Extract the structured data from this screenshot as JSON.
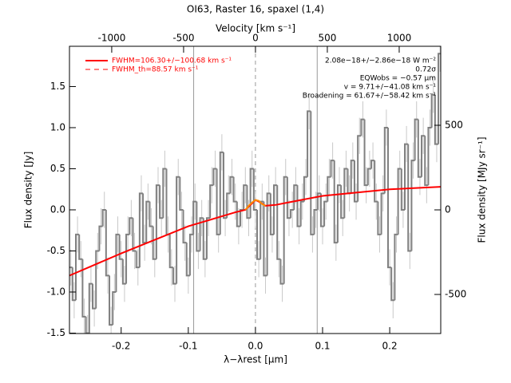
{
  "chart_data": {
    "type": "step",
    "title": "OI63, Raster 16, spaxel (1,4)",
    "xlabel": "λ−λrest [μm]",
    "ylabel": "Flux density [Jy]",
    "x2label": "Velocity [km s⁻¹]",
    "y2label": "Flux density [MJy sr⁻¹]",
    "xlim": [
      -0.277,
      0.276
    ],
    "xticks": [
      -0.2,
      -0.1,
      {
        "value": 0,
        "label": "0.0"
      },
      0.1,
      0.2
    ],
    "ylim": [
      -1.505,
      1.99
    ],
    "yticks": [
      -1.5,
      {
        "value": -1,
        "label": "-1.0"
      },
      -0.5,
      {
        "value": 0,
        "label": "0.0"
      },
      0.5,
      {
        "value": 1,
        "label": "1.0"
      },
      1.5
    ],
    "x2lim": [
      -1294,
      1289
    ],
    "x2ticks": [
      -1000,
      -500,
      0,
      500,
      1000
    ],
    "y2lim": [
      -731,
      967
    ],
    "y2ticks": [
      -500,
      0,
      500
    ],
    "x": [
      -0.275,
      -0.27,
      -0.265,
      -0.26,
      -0.255,
      -0.25,
      -0.245,
      -0.24,
      -0.235,
      -0.23,
      -0.225,
      -0.22,
      -0.215,
      -0.21,
      -0.205,
      -0.2,
      -0.195,
      -0.19,
      -0.185,
      -0.18,
      -0.175,
      -0.17,
      -0.165,
      -0.16,
      -0.155,
      -0.15,
      -0.145,
      -0.14,
      -0.135,
      -0.13,
      -0.125,
      -0.12,
      -0.115,
      -0.11,
      -0.105,
      -0.1,
      -0.095,
      -0.09,
      -0.085,
      -0.08,
      -0.075,
      -0.07,
      -0.065,
      -0.06,
      -0.055,
      -0.05,
      -0.045,
      -0.04,
      -0.035,
      -0.03,
      -0.025,
      -0.02,
      -0.015,
      -0.01,
      -0.005,
      0,
      0.005,
      0.01,
      0.015,
      0.02,
      0.025,
      0.03,
      0.035,
      0.04,
      0.045,
      0.05,
      0.055,
      0.06,
      0.065,
      0.07,
      0.075,
      0.08,
      0.085,
      0.09,
      0.095,
      0.1,
      0.105,
      0.11,
      0.115,
      0.12,
      0.125,
      0.13,
      0.135,
      0.14,
      0.145,
      0.15,
      0.155,
      0.16,
      0.165,
      0.17,
      0.175,
      0.18,
      0.185,
      0.19,
      0.195,
      0.2,
      0.205,
      0.21,
      0.215,
      0.22,
      0.225,
      0.23,
      0.235,
      0.24,
      0.245,
      0.25,
      0.255,
      0.26,
      0.265,
      0.27,
      0.275
    ],
    "values": [
      -0.7,
      -1.1,
      -0.3,
      -0.6,
      -1.3,
      -1.5,
      -0.9,
      -1.2,
      -0.5,
      -0.2,
      0.0,
      -0.8,
      -1.4,
      -1.0,
      -0.3,
      -0.6,
      -0.9,
      -0.3,
      -0.1,
      -0.5,
      -0.7,
      0.2,
      -0.4,
      0.1,
      -0.2,
      -0.6,
      0.3,
      -0.1,
      0.5,
      -0.3,
      -0.7,
      -0.9,
      0.4,
      0.0,
      -0.4,
      -0.8,
      -0.3,
      0.1,
      -0.5,
      -0.1,
      -0.6,
      -0.1,
      0.3,
      0.5,
      -0.3,
      0.7,
      -0.1,
      0.2,
      0.4,
      0.1,
      -0.2,
      0.0,
      0.3,
      -0.1,
      0.5,
      0.0,
      -0.6,
      0.1,
      -0.8,
      0.2,
      -0.3,
      0.3,
      -0.6,
      -0.9,
      0.4,
      -0.1,
      0.0,
      0.3,
      -0.2,
      0.1,
      0.4,
      1.2,
      -0.3,
      0.0,
      0.2,
      -0.2,
      0.1,
      0.4,
      0.6,
      -0.4,
      0.3,
      -0.1,
      0.5,
      0.2,
      0.6,
      0.1,
      0.9,
      1.1,
      0.3,
      0.5,
      0.6,
      0.1,
      -0.3,
      0.2,
      1.0,
      -0.7,
      -1.1,
      -0.3,
      0.5,
      0.0,
      0.8,
      -0.5,
      0.6,
      1.1,
      0.4,
      0.9,
      0.3,
      1.0,
      1.4,
      0.8,
      1.9
    ],
    "error": 0.22,
    "color": "#808080",
    "models": [
      {
        "color": "#ff0000",
        "x": [
          -0.277,
          -0.2,
          -0.1,
          -0.03,
          -0.015,
          -0.005,
          0,
          0.005,
          0.015,
          0.03,
          0.1,
          0.2,
          0.276
        ],
        "values": [
          -0.8,
          -0.53,
          -0.2,
          -0.03,
          0.0,
          0.08,
          0.12,
          0.1,
          0.05,
          0.06,
          0.17,
          0.25,
          0.28
        ]
      },
      {
        "color": "#ff8c00",
        "x": [
          -0.015,
          -0.01,
          -0.005,
          0,
          0.005,
          0.01,
          0.015
        ],
        "values": [
          0.0,
          0.05,
          0.09,
          0.12,
          0.11,
          0.07,
          0.05
        ]
      }
    ],
    "vlines": [
      {
        "x": -0.092,
        "style": "solid"
      },
      {
        "x": 0,
        "style": "dashed"
      },
      {
        "x": 0.092,
        "style": "solid"
      }
    ],
    "legend": [
      {
        "label": "FWHM=106.30+/−100.68 km s⁻¹",
        "color": "#ff0000",
        "style": "solid"
      },
      {
        "label": "FWHM_th=88.57 km s⁻¹",
        "color": "#ff0000",
        "style": "dashed"
      }
    ],
    "annotations": [
      "2.08e−18+/−2.86e−18 W m⁻²",
      "0.72σ",
      "EQWobs = −0.57 μm",
      "v = 9.71+/−41.08 km s⁻¹",
      "Broadening = 61.67+/−58.42 km s⁻¹"
    ]
  }
}
